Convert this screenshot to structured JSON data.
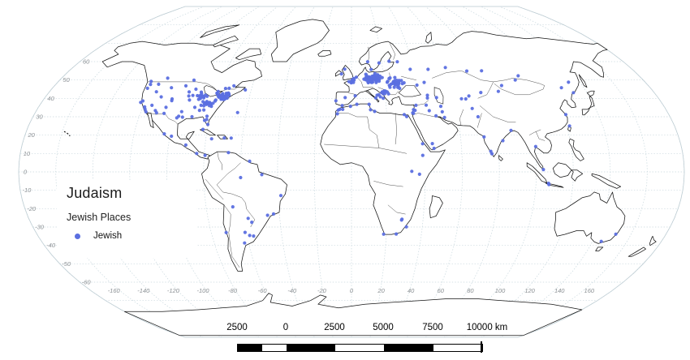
{
  "legend": {
    "title": "Judaism",
    "layer_name": "Jewish Places",
    "items": [
      {
        "label": "Jewish",
        "marker": "dot",
        "color": "#5b6fe0"
      }
    ]
  },
  "scalebar": {
    "tick_labels": [
      "2500",
      "0",
      "2500",
      "5000",
      "7500"
    ],
    "end_label": "10000 km",
    "segments": [
      "dark",
      "light",
      "dark",
      "light",
      "dark",
      "light"
    ],
    "segment_widths": [
      30,
      30,
      60,
      60,
      61,
      60
    ]
  },
  "map_axes": {
    "lat_labels": [
      60,
      50,
      40,
      30,
      20,
      10,
      0,
      -10,
      -20,
      -30,
      -40,
      -50,
      -60
    ],
    "lon_labels": [
      -160,
      -140,
      -120,
      -100,
      -80,
      -60,
      -40,
      -20,
      0,
      20,
      40,
      60,
      80,
      100,
      120,
      140,
      160
    ]
  },
  "style": {
    "dot_color": "#5b6fe0",
    "grid_color": "#c9d8de",
    "boundary_color": "#b9c8cf",
    "coast_color": "#141414",
    "border_color": "#3a3a3a",
    "axis_label_color": "#8b9094",
    "scalebar_dark": "#000000",
    "scalebar_light": "#ffffff"
  },
  "chart_data": {
    "type": "scatter",
    "title": "Judaism",
    "legend": [
      "Jewish"
    ],
    "projection": "pseudocylindrical world map (Kavrayskiy-VII-like), lon -180..180, lat -90..90",
    "graticule": {
      "parallel_step_deg": 10,
      "meridian_step_deg": 20,
      "grid_on": true
    },
    "series": [
      {
        "name": "Jewish",
        "color": "#5b6fe0",
        "points_lonlat": [
          [
            -122.3,
            47.6
          ],
          [
            -122.7,
            45.5
          ],
          [
            -123.1,
            49.3
          ],
          [
            -121.5,
            38.6
          ],
          [
            -122.4,
            37.8
          ],
          [
            -119.0,
            35.4
          ],
          [
            -118.2,
            34.1
          ],
          [
            -117.1,
            32.7
          ],
          [
            -115.1,
            36.2
          ],
          [
            -111.9,
            40.8
          ],
          [
            -112.0,
            33.4
          ],
          [
            -110.9,
            32.2
          ],
          [
            -106.6,
            35.1
          ],
          [
            -106.5,
            31.8
          ],
          [
            -105.0,
            39.7
          ],
          [
            -104.8,
            38.8
          ],
          [
            -108.5,
            45.8
          ],
          [
            -116.2,
            43.6
          ],
          [
            -117.4,
            47.7
          ],
          [
            -100.3,
            46.8
          ],
          [
            -96.7,
            43.5
          ],
          [
            -95.9,
            41.3
          ],
          [
            -94.6,
            39.1
          ],
          [
            -93.6,
            41.6
          ],
          [
            -93.3,
            45.0
          ],
          [
            -97.1,
            49.9
          ],
          [
            -96.8,
            32.8
          ],
          [
            -97.7,
            30.3
          ],
          [
            -98.5,
            29.4
          ],
          [
            -95.4,
            29.8
          ],
          [
            -90.1,
            30.0
          ],
          [
            -90.0,
            35.1
          ],
          [
            -86.8,
            36.2
          ],
          [
            -84.4,
            33.7
          ],
          [
            -86.8,
            33.5
          ],
          [
            -81.7,
            30.3
          ],
          [
            -81.4,
            28.5
          ],
          [
            -82.5,
            28.0
          ],
          [
            -80.2,
            25.8
          ],
          [
            -114.1,
            51.0
          ],
          [
            -79.4,
            43.7
          ],
          [
            -75.7,
            45.4
          ],
          [
            -73.6,
            45.5
          ],
          [
            -71.2,
            46.8
          ],
          [
            -63.6,
            44.6
          ],
          [
            -64.8,
            32.3
          ],
          [
            -99.1,
            19.4
          ],
          [
            -103.3,
            20.7
          ],
          [
            -90.5,
            14.6
          ],
          [
            -84.1,
            10.0
          ],
          [
            -79.5,
            9.0
          ],
          [
            -82.4,
            23.1
          ],
          [
            -76.8,
            18.0
          ],
          [
            -69.9,
            18.5
          ],
          [
            -66.1,
            18.4
          ],
          [
            -66.9,
            10.5
          ],
          [
            -55.2,
            5.8
          ],
          [
            -60.0,
            -3.1
          ],
          [
            -48.5,
            -1.5
          ],
          [
            -38.5,
            -12.9
          ],
          [
            -43.2,
            -22.9
          ],
          [
            -46.6,
            -23.6
          ],
          [
            -65.3,
            -19.0
          ],
          [
            -57.6,
            -25.3
          ],
          [
            -55.9,
            -27.4
          ],
          [
            -58.4,
            -34.6
          ],
          [
            -56.2,
            -34.9
          ],
          [
            -60.7,
            -32.9
          ],
          [
            -71.5,
            -33.0
          ],
          [
            -62.3,
            -38.7
          ],
          [
            -9.1,
            38.7
          ],
          [
            -3.7,
            40.4
          ],
          [
            2.2,
            41.4
          ],
          [
            -5.4,
            36.1
          ],
          [
            -6.3,
            53.3
          ],
          [
            -4.3,
            55.9
          ],
          [
            12.6,
            55.7
          ],
          [
            18.1,
            59.3
          ],
          [
            10.7,
            59.9
          ],
          [
            24.9,
            60.2
          ],
          [
            30.3,
            59.9
          ],
          [
            37.6,
            55.8
          ],
          [
            39.7,
            47.2
          ],
          [
            44.5,
            48.7
          ],
          [
            49.1,
            55.8
          ],
          [
            60.6,
            56.8
          ],
          [
            -7.6,
            33.6
          ],
          [
            -6.8,
            34.0
          ],
          [
            -8.0,
            31.6
          ],
          [
            -5.0,
            34.0
          ],
          [
            -0.6,
            35.7
          ],
          [
            3.1,
            36.8
          ],
          [
            10.2,
            36.8
          ],
          [
            10.9,
            33.8
          ],
          [
            13.2,
            32.9
          ],
          [
            31.2,
            30.1
          ],
          [
            29.9,
            31.2
          ],
          [
            34.8,
            32.1
          ],
          [
            35.2,
            31.8
          ],
          [
            35.5,
            33.9
          ],
          [
            36.3,
            33.5
          ],
          [
            37.2,
            36.2
          ],
          [
            43.1,
            36.3
          ],
          [
            44.4,
            33.3
          ],
          [
            47.8,
            30.5
          ],
          [
            51.4,
            35.7
          ],
          [
            51.7,
            32.7
          ],
          [
            52.5,
            29.6
          ],
          [
            44.8,
            41.7
          ],
          [
            44.5,
            40.2
          ],
          [
            49.9,
            40.4
          ],
          [
            44.2,
            15.4
          ],
          [
            45.0,
            12.8
          ],
          [
            38.9,
            15.3
          ],
          [
            64.4,
            39.8
          ],
          [
            66.9,
            39.7
          ],
          [
            69.2,
            41.3
          ],
          [
            76.9,
            43.2
          ],
          [
            69.2,
            34.5
          ],
          [
            71.5,
            30.0
          ],
          [
            82.9,
            55.0
          ],
          [
            73.4,
            54.9
          ],
          [
            104.3,
            52.3
          ],
          [
            132.9,
            48.8
          ],
          [
            131.9,
            43.1
          ],
          [
            126.5,
            45.8
          ],
          [
            87.6,
            43.8
          ],
          [
            91.0,
            47.0
          ],
          [
            101.0,
            50.0
          ],
          [
            72.9,
            19.0
          ],
          [
            75.8,
            11.2
          ],
          [
            76.3,
            9.9
          ],
          [
            83.0,
            17.0
          ],
          [
            88.4,
            22.6
          ],
          [
            100.5,
            13.8
          ],
          [
            103.8,
            1.3
          ],
          [
            106.8,
            -6.2
          ],
          [
            107.0,
            -6.9
          ],
          [
            121.5,
            25.0
          ],
          [
            121.5,
            31.2
          ],
          [
            151.2,
            -33.9
          ],
          [
            145.0,
            -37.8
          ],
          [
            38.7,
            9.0
          ],
          [
            36.8,
            -1.3
          ],
          [
            32.6,
            0.3
          ],
          [
            18.4,
            -33.9
          ],
          [
            25.6,
            -33.8
          ],
          [
            28.0,
            -26.2
          ],
          [
            28.2,
            -25.7
          ],
          [
            31.0,
            -29.9
          ]
        ],
        "clusters": [
          {
            "center": [
              -75.5,
              41.0
            ],
            "spread": [
              4.5,
              2.4
            ],
            "count": 36
          },
          {
            "center": [
              -83.0,
              36.5
            ],
            "spread": [
              5.0,
              2.6
            ],
            "count": 18
          },
          {
            "center": [
              -89.0,
              41.5
            ],
            "spread": [
              4.5,
              2.5
            ],
            "count": 16
          },
          {
            "center": [
              13.0,
              50.5
            ],
            "spread": [
              7.0,
              3.2
            ],
            "count": 62
          },
          {
            "center": [
              26.0,
              48.5
            ],
            "spread": [
              6.5,
              3.6
            ],
            "count": 32
          },
          {
            "center": [
              17.0,
              43.0
            ],
            "spread": [
              6.0,
              3.0
            ],
            "count": 14
          },
          {
            "center": [
              1.0,
              50.2
            ],
            "spread": [
              3.5,
              2.0
            ],
            "count": 10
          }
        ]
      }
    ]
  }
}
